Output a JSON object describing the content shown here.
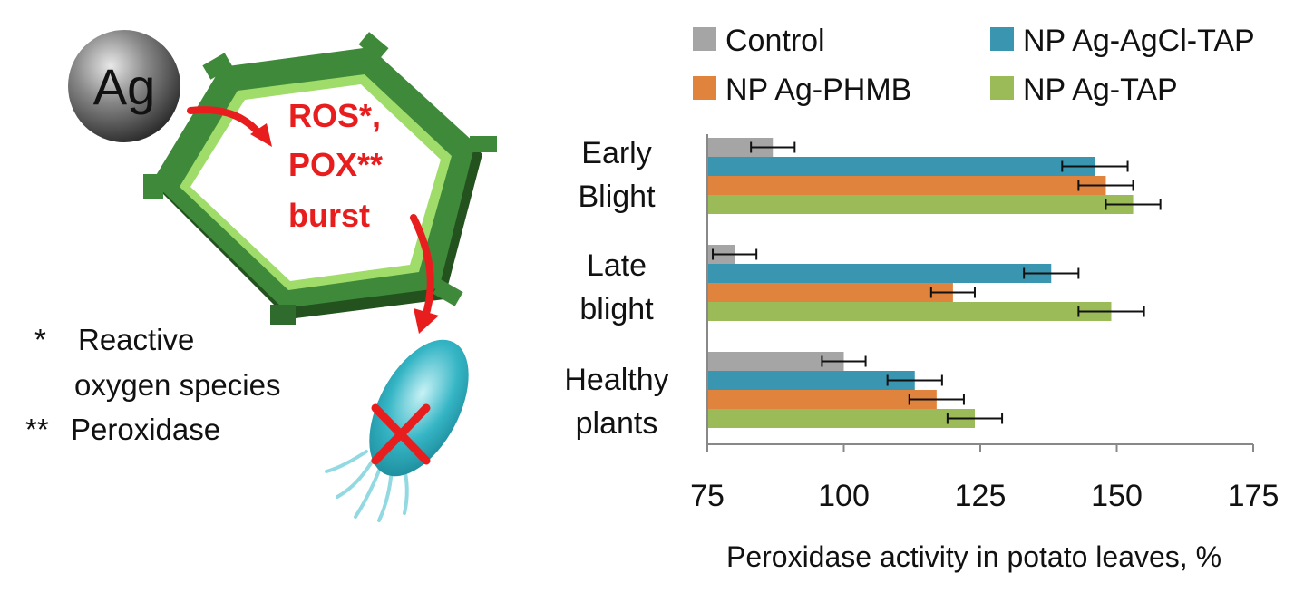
{
  "illustration": {
    "ag_label": "Ag",
    "burst_lines": [
      "ROS*,",
      "POX**",
      "burst"
    ],
    "notes": [
      {
        "marker": "*",
        "text": "Reactive"
      },
      {
        "marker": "",
        "text": "oxygen species"
      },
      {
        "marker": "**",
        "text": "Peroxidase"
      }
    ],
    "colors": {
      "ag_sphere": "#555555",
      "cell_wall": "#2f6b2c",
      "cell_wall_light": "#8ccf5a",
      "arrow": "#e81e1e",
      "bacterium": "#29a8b8",
      "cross": "#e81e1e"
    },
    "icons": [
      "silver-nanoparticle-sphere",
      "plant-cell-hexagon",
      "bacterium-icon",
      "cross-mark-icon"
    ]
  },
  "chart_data": {
    "type": "bar",
    "orientation": "horizontal",
    "xlabel": "Peroxidase activity in potato leaves, %",
    "ylabel": "",
    "title": "",
    "xlim": [
      75,
      175
    ],
    "xticks": [
      75,
      100,
      125,
      150,
      175
    ],
    "grid": false,
    "legend_position": "top",
    "categories": [
      {
        "lines": [
          "Early",
          "Blight"
        ]
      },
      {
        "lines": [
          "Late",
          "blight"
        ]
      },
      {
        "lines": [
          "Healthy",
          "plants"
        ]
      }
    ],
    "series": [
      {
        "name": "Control",
        "color": "#a5a5a5",
        "values": [
          87,
          80,
          100
        ],
        "errors": [
          4,
          4,
          4
        ]
      },
      {
        "name": "NP Ag-AgCl-TAP",
        "color": "#3a95b0",
        "values": [
          146,
          138,
          113
        ],
        "errors": [
          6,
          5,
          5
        ]
      },
      {
        "name": "NP Ag-PHMB",
        "color": "#e0833d",
        "values": [
          148,
          120,
          117
        ],
        "errors": [
          5,
          4,
          5
        ]
      },
      {
        "name": "NP Ag-TAP",
        "color": "#9bbb59",
        "values": [
          153,
          149,
          124
        ],
        "errors": [
          5,
          6,
          5
        ]
      }
    ]
  }
}
